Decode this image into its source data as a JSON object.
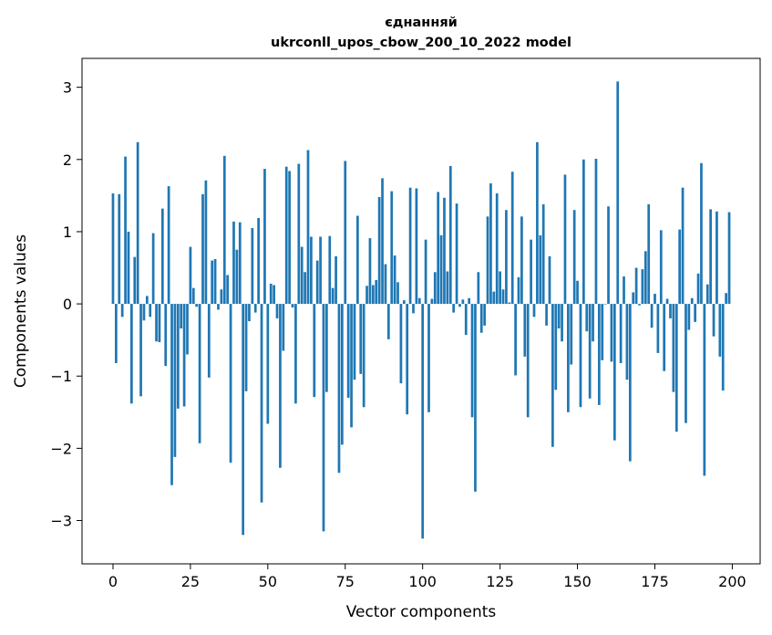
{
  "chart_data": {
    "type": "bar",
    "title_line1": "єднанняй",
    "title_line2": "ukrconll_upos_cbow_200_10_2022 model",
    "xlabel": "Vector components",
    "ylabel": "Components values",
    "xlim": [
      -10,
      209
    ],
    "ylim": [
      -3.6,
      3.4
    ],
    "xticks": [
      0,
      25,
      50,
      75,
      100,
      125,
      150,
      175,
      200
    ],
    "yticks": [
      -3,
      -2,
      -1,
      0,
      1,
      2,
      3
    ],
    "xtick_labels": [
      "0",
      "25",
      "50",
      "75",
      "100",
      "125",
      "150",
      "175",
      "200"
    ],
    "ytick_labels": [
      "−3",
      "−2",
      "−1",
      "0",
      "1",
      "2",
      "3"
    ],
    "bar_color": "#1f77b4",
    "grid": false,
    "x": [
      0,
      1,
      2,
      3,
      4,
      5,
      6,
      7,
      8,
      9,
      10,
      11,
      12,
      13,
      14,
      15,
      16,
      17,
      18,
      19,
      20,
      21,
      22,
      23,
      24,
      25,
      26,
      27,
      28,
      29,
      30,
      31,
      32,
      33,
      34,
      35,
      36,
      37,
      38,
      39,
      40,
      41,
      42,
      43,
      44,
      45,
      46,
      47,
      48,
      49,
      50,
      51,
      52,
      53,
      54,
      55,
      56,
      57,
      58,
      59,
      60,
      61,
      62,
      63,
      64,
      65,
      66,
      67,
      68,
      69,
      70,
      71,
      72,
      73,
      74,
      75,
      76,
      77,
      78,
      79,
      80,
      81,
      82,
      83,
      84,
      85,
      86,
      87,
      88,
      89,
      90,
      91,
      92,
      93,
      94,
      95,
      96,
      97,
      98,
      99,
      100,
      101,
      102,
      103,
      104,
      105,
      106,
      107,
      108,
      109,
      110,
      111,
      112,
      113,
      114,
      115,
      116,
      117,
      118,
      119,
      120,
      121,
      122,
      123,
      124,
      125,
      126,
      127,
      128,
      129,
      130,
      131,
      132,
      133,
      134,
      135,
      136,
      137,
      138,
      139,
      140,
      141,
      142,
      143,
      144,
      145,
      146,
      147,
      148,
      149,
      150,
      151,
      152,
      153,
      154,
      155,
      156,
      157,
      158,
      159,
      160,
      161,
      162,
      163,
      164,
      165,
      166,
      167,
      168,
      169,
      170,
      171,
      172,
      173,
      174,
      175,
      176,
      177,
      178,
      179,
      180,
      181,
      182,
      183,
      184,
      185,
      186,
      187,
      188,
      189,
      190,
      191,
      192,
      193,
      194,
      195,
      196,
      197,
      198,
      199
    ],
    "values": [
      1.53,
      -0.82,
      1.52,
      -0.18,
      2.04,
      1.0,
      -1.38,
      0.65,
      2.24,
      -1.28,
      -0.23,
      0.11,
      -0.18,
      0.98,
      -0.52,
      -0.53,
      1.32,
      -0.86,
      1.63,
      -2.51,
      -2.12,
      -1.45,
      -0.34,
      -1.42,
      -0.7,
      0.79,
      0.22,
      -0.04,
      -1.93,
      1.52,
      1.71,
      -1.02,
      0.6,
      0.62,
      -0.08,
      0.2,
      2.05,
      0.4,
      -2.2,
      1.14,
      0.75,
      1.13,
      -3.2,
      -1.21,
      -0.24,
      1.05,
      -0.12,
      1.19,
      -2.75,
      1.87,
      -1.66,
      0.28,
      0.26,
      -0.2,
      -2.27,
      -0.65,
      1.9,
      1.84,
      -0.05,
      -1.38,
      1.94,
      0.79,
      0.44,
      2.13,
      0.93,
      -1.29,
      0.6,
      0.93,
      -3.15,
      -1.22,
      0.94,
      0.22,
      0.66,
      -2.34,
      -1.95,
      1.98,
      -1.3,
      -1.71,
      -1.05,
      1.22,
      -0.97,
      -1.43,
      0.25,
      0.91,
      0.26,
      0.33,
      1.48,
      1.74,
      0.55,
      -0.49,
      1.56,
      0.67,
      0.3,
      -1.1,
      0.05,
      -1.53,
      1.61,
      -0.13,
      1.6,
      0.08,
      -3.25,
      0.89,
      -1.5,
      0.07,
      0.44,
      1.55,
      0.95,
      1.47,
      0.45,
      1.91,
      -0.12,
      1.39,
      -0.04,
      0.06,
      -0.43,
      0.08,
      -1.57,
      -2.6,
      0.44,
      -0.4,
      -0.3,
      1.21,
      1.67,
      0.17,
      1.53,
      0.45,
      0.2,
      1.3,
      0.02,
      1.83,
      -0.99,
      0.37,
      1.21,
      -0.73,
      -1.57,
      0.89,
      -0.18,
      2.24,
      0.95,
      1.38,
      -0.3,
      0.66,
      -1.98,
      -1.19,
      -0.34,
      -0.52,
      1.79,
      -1.5,
      -0.84,
      1.3,
      0.32,
      -1.43,
      2.0,
      -0.38,
      -1.31,
      -0.52,
      2.01,
      -1.4,
      -0.78,
      0.0,
      1.35,
      -0.8,
      -1.89,
      3.08,
      -0.82,
      0.38,
      -1.05,
      -2.18,
      0.16,
      0.5,
      -0.02,
      0.48,
      0.73,
      1.38,
      -0.33,
      0.14,
      -0.68,
      1.02,
      -0.93,
      0.07,
      -0.2,
      -1.22,
      -1.77,
      1.03,
      1.61,
      -1.65,
      -0.36,
      0.08,
      -0.25,
      0.42,
      1.95,
      -2.38,
      0.27,
      1.31,
      -0.45,
      1.28,
      -0.73,
      -1.2,
      0.15,
      1.27
    ]
  }
}
